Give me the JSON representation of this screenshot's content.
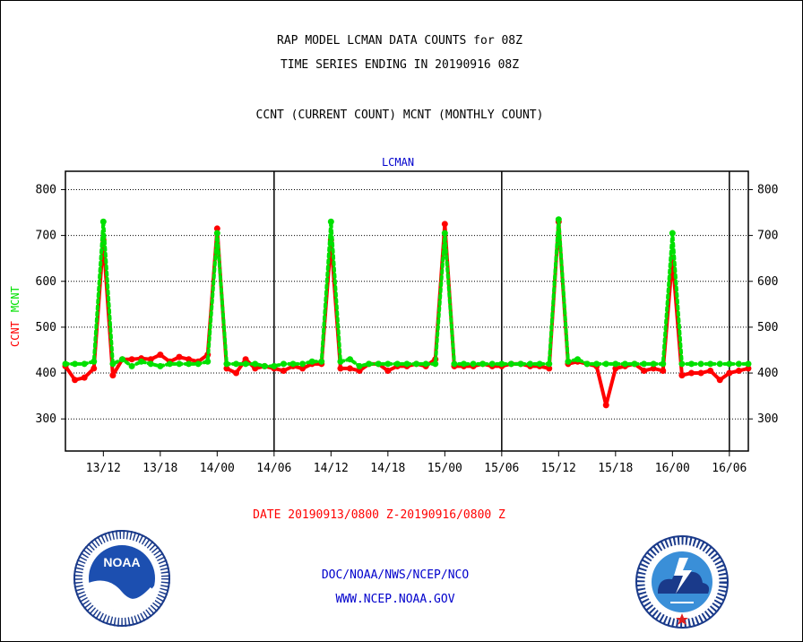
{
  "header": {
    "title_line1": "RAP MODEL LCMAN DATA COUNTS for 08Z",
    "title_line2": "TIME SERIES ENDING IN 20190916 08Z",
    "subtitle": "CCNT (CURRENT COUNT) MCNT (MONTHLY COUNT)"
  },
  "footer": {
    "date_range": "DATE 20190913/0800 Z-20190916/0800 Z",
    "org_line": "DOC/NOAA/NWS/NCEP/NCO",
    "url_line": "WWW.NCEP.NOAA.GOV"
  },
  "logos": {
    "left": {
      "icon": "noaa-logo-icon",
      "text": "NOAA"
    },
    "right": {
      "icon": "nws-logo-icon"
    }
  },
  "colors": {
    "ccnt": "#ff0000",
    "mcnt": "#00e000",
    "panel_title": "#0000cc",
    "footer_text": "#0000cc",
    "date_text": "#ff0000"
  },
  "chart_data": {
    "type": "line",
    "panel_title": "LCMAN",
    "ylabel_parts": [
      {
        "text": "CCNT",
        "color": "#ff0000"
      },
      {
        "text": "MCNT",
        "color": "#00e000"
      }
    ],
    "ylim": [
      230,
      840
    ],
    "yticks": [
      300,
      400,
      500,
      600,
      700,
      800
    ],
    "xlim": [
      0,
      72
    ],
    "x_unit": "hours since 20190913/0800 Z",
    "xticks": [
      {
        "x": 4,
        "label": "13/12"
      },
      {
        "x": 10,
        "label": "13/18"
      },
      {
        "x": 16,
        "label": "14/00"
      },
      {
        "x": 22,
        "label": "14/06"
      },
      {
        "x": 28,
        "label": "14/12"
      },
      {
        "x": 34,
        "label": "14/18"
      },
      {
        "x": 40,
        "label": "15/00"
      },
      {
        "x": 46,
        "label": "15/06"
      },
      {
        "x": 52,
        "label": "15/12"
      },
      {
        "x": 58,
        "label": "15/18"
      },
      {
        "x": 64,
        "label": "16/00"
      },
      {
        "x": 70,
        "label": "16/06"
      }
    ],
    "day_separators": [
      22,
      46,
      70
    ],
    "grid": true,
    "series": [
      {
        "name": "CCNT",
        "color": "#ff0000",
        "x": [
          0,
          1,
          2,
          3,
          4,
          5,
          6,
          7,
          8,
          9,
          10,
          11,
          12,
          13,
          14,
          15,
          16,
          17,
          18,
          19,
          20,
          21,
          22,
          23,
          24,
          25,
          26,
          27,
          28,
          29,
          30,
          31,
          32,
          33,
          34,
          35,
          36,
          37,
          38,
          39,
          40,
          41,
          42,
          43,
          44,
          45,
          46,
          47,
          48,
          49,
          50,
          51,
          52,
          53,
          54,
          55,
          56,
          57,
          58,
          59,
          60,
          61,
          62,
          63,
          64,
          65,
          66,
          67,
          68,
          69,
          70,
          71,
          72
        ],
        "values": [
          415,
          385,
          390,
          410,
          690,
          395,
          430,
          430,
          432,
          430,
          440,
          425,
          435,
          430,
          425,
          440,
          715,
          410,
          400,
          430,
          410,
          415,
          410,
          405,
          415,
          410,
          420,
          420,
          690,
          410,
          410,
          405,
          420,
          420,
          405,
          415,
          415,
          420,
          415,
          430,
          725,
          415,
          415,
          415,
          420,
          415,
          415,
          420,
          420,
          415,
          415,
          410,
          730,
          420,
          425,
          420,
          415,
          330,
          410,
          415,
          420,
          405,
          410,
          405,
          650,
          395,
          400,
          400,
          405,
          385,
          400,
          405,
          410
        ]
      },
      {
        "name": "MCNT",
        "color": "#00e000",
        "x": [
          0,
          1,
          2,
          3,
          4,
          5,
          6,
          7,
          8,
          9,
          10,
          11,
          12,
          13,
          14,
          15,
          16,
          17,
          18,
          19,
          20,
          21,
          22,
          23,
          24,
          25,
          26,
          27,
          28,
          29,
          30,
          31,
          32,
          33,
          34,
          35,
          36,
          37,
          38,
          39,
          40,
          41,
          42,
          43,
          44,
          45,
          46,
          47,
          48,
          49,
          50,
          51,
          52,
          53,
          54,
          55,
          56,
          57,
          58,
          59,
          60,
          61,
          62,
          63,
          64,
          65,
          66,
          67,
          68,
          69,
          70,
          71,
          72
        ],
        "values": [
          420,
          420,
          420,
          425,
          730,
          420,
          430,
          415,
          425,
          420,
          415,
          420,
          420,
          420,
          420,
          425,
          705,
          420,
          420,
          420,
          420,
          415,
          415,
          420,
          420,
          420,
          425,
          425,
          730,
          425,
          430,
          415,
          420,
          420,
          420,
          420,
          420,
          420,
          420,
          420,
          705,
          420,
          420,
          420,
          420,
          420,
          420,
          420,
          420,
          420,
          420,
          420,
          735,
          425,
          430,
          420,
          420,
          420,
          420,
          420,
          420,
          420,
          420,
          420,
          705,
          420,
          420,
          420,
          420,
          420,
          420,
          420,
          420
        ]
      }
    ]
  }
}
